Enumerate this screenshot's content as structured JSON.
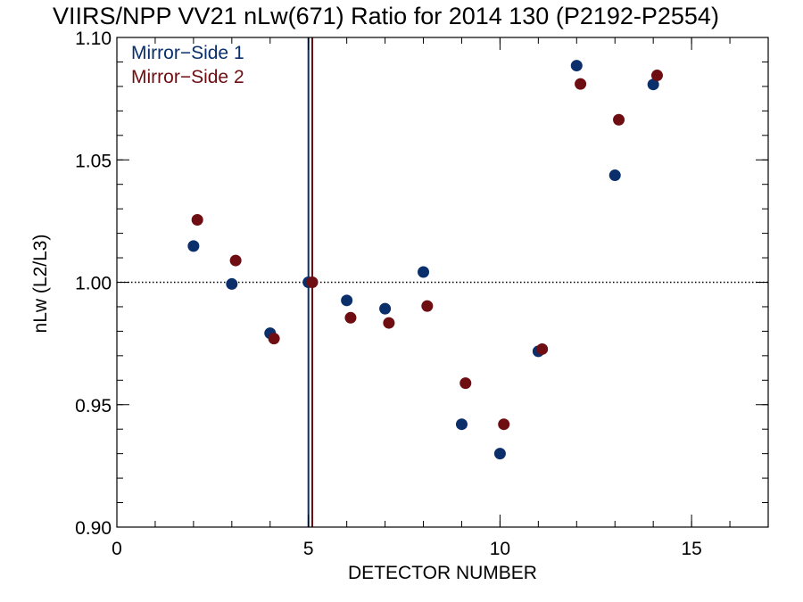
{
  "chart_data": {
    "type": "scatter",
    "title": "VIIRS/NPP VV21 nLw(671) Ratio for 2014 130 (P2192-P2554)",
    "xlabel": "DETECTOR NUMBER",
    "ylabel": "nLw (L2/L3)",
    "xlim": [
      0,
      17
    ],
    "ylim": [
      0.9,
      1.1
    ],
    "x_ticks": [
      0,
      5,
      10,
      15
    ],
    "x_tick_labels": [
      "0",
      "5",
      "10",
      "15"
    ],
    "y_ticks": [
      0.9,
      0.95,
      1.0,
      1.05,
      1.1
    ],
    "y_tick_labels": [
      "0.90",
      "0.95",
      "1.00",
      "1.05",
      "1.10"
    ],
    "x_minor_step": 1,
    "y_minor_step": 0.01,
    "reference_line_y": 1.0,
    "legend_placement": "top-left",
    "series": [
      {
        "name": "Mirror−Side 1",
        "color": "#0a2f6b",
        "x": [
          2,
          3,
          4,
          5,
          6,
          7,
          8,
          9,
          10,
          11,
          12,
          13,
          14
        ],
        "y": [
          1.0148,
          0.9993,
          0.9792,
          1.0,
          0.9926,
          0.9892,
          1.0042,
          0.942,
          0.93,
          0.9718,
          1.0885,
          1.0437,
          1.0808
        ]
      },
      {
        "name": "Mirror−Side 2",
        "color": "#6e0d12",
        "x": [
          2.1,
          3.1,
          4.1,
          5.1,
          6.1,
          7.1,
          8.1,
          9.1,
          10.1,
          11.1,
          12.1,
          13.1,
          14.1
        ],
        "y": [
          1.0255,
          1.0089,
          0.977,
          1.0,
          0.9855,
          0.9834,
          0.9903,
          0.9588,
          0.942,
          0.9727,
          1.081,
          1.0664,
          1.0845
        ]
      }
    ],
    "vertical_lines": [
      {
        "x": 5.0,
        "color": "#0a2f6b"
      },
      {
        "x": 5.1,
        "color": "#6e0d12"
      }
    ]
  }
}
